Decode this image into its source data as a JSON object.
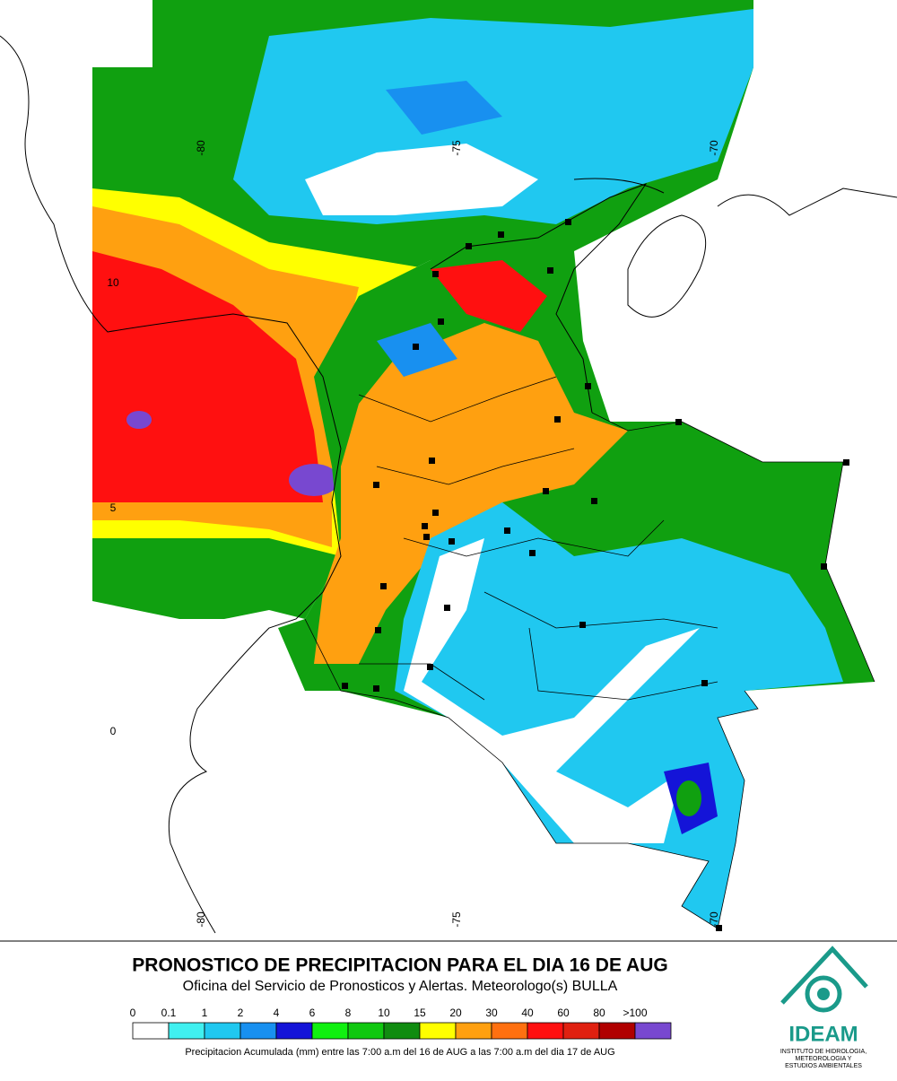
{
  "map": {
    "lon_labels_top": [
      "-80",
      "-75",
      "-70"
    ],
    "lon_labels_bottom": [
      "-80",
      "-75",
      "-70"
    ],
    "lat_labels": [
      "10",
      "5",
      "0"
    ]
  },
  "title": "PRONOSTICO DE PRECIPITACION PARA EL DIA 16 DE AUG",
  "subtitle": "Oficina del Servicio de Pronosticos y Alertas. Meteorologo(s) BULLA",
  "legend": {
    "labels": [
      "0",
      "0.1",
      "1",
      "2",
      "4",
      "6",
      "8",
      "10",
      "15",
      "20",
      "30",
      "40",
      "60",
      "80",
      ">100"
    ],
    "colors": [
      "#ffffff",
      "#40f0f0",
      "#20c8f0",
      "#1890f0",
      "#1414d8",
      "#10f010",
      "#10c810",
      "#108c10",
      "#ffff00",
      "#ffa010",
      "#ff7010",
      "#ff1010",
      "#e02010",
      "#b00000",
      "#7848d0"
    ],
    "caption": "Precipitacion Acumulada (mm) entre las 7:00 a.m del 16 de AUG a las 7:00 a.m del dia 17 de AUG"
  },
  "logo": {
    "name": "IDEAM",
    "lines": [
      "INSTITUTO DE HIDROLOGIA,",
      "METEOROLOGIA Y",
      "ESTUDIOS AMBIENTALES"
    ]
  }
}
